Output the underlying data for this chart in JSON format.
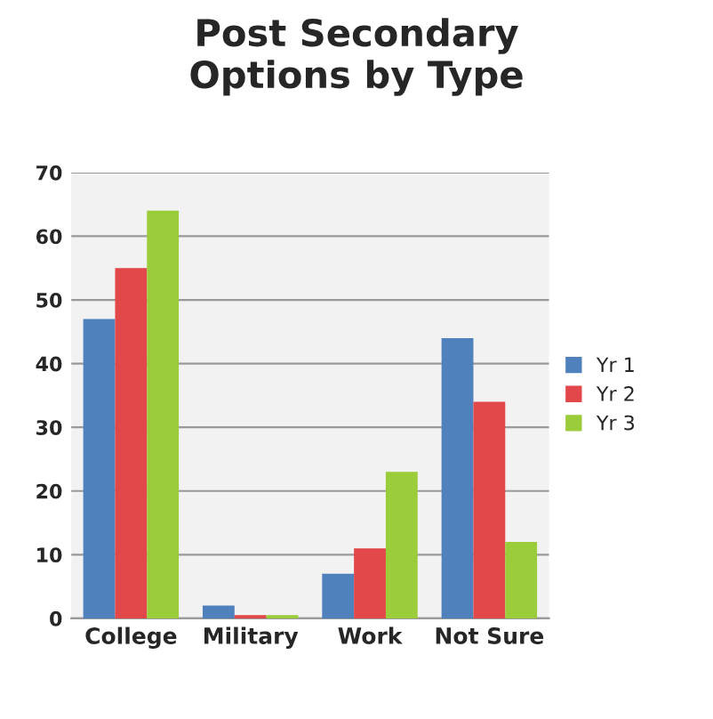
{
  "chart_data": {
    "type": "bar",
    "title": "Post Secondary\nOptions by Type",
    "categories": [
      "College",
      "Military",
      "Work",
      "Not Sure"
    ],
    "series": [
      {
        "name": "Yr 1",
        "color": "#4f81bd",
        "values": [
          47,
          2,
          7,
          44
        ]
      },
      {
        "name": "Yr 2",
        "color": "#e2474a",
        "values": [
          55,
          0.5,
          11,
          34
        ]
      },
      {
        "name": "Yr 3",
        "color": "#9bcc3a",
        "values": [
          64,
          0.5,
          23,
          12
        ]
      }
    ],
    "ylim": [
      0,
      70
    ],
    "yticks": [
      0,
      10,
      20,
      30,
      40,
      50,
      60,
      70
    ],
    "grid": "y",
    "legend": "right"
  }
}
